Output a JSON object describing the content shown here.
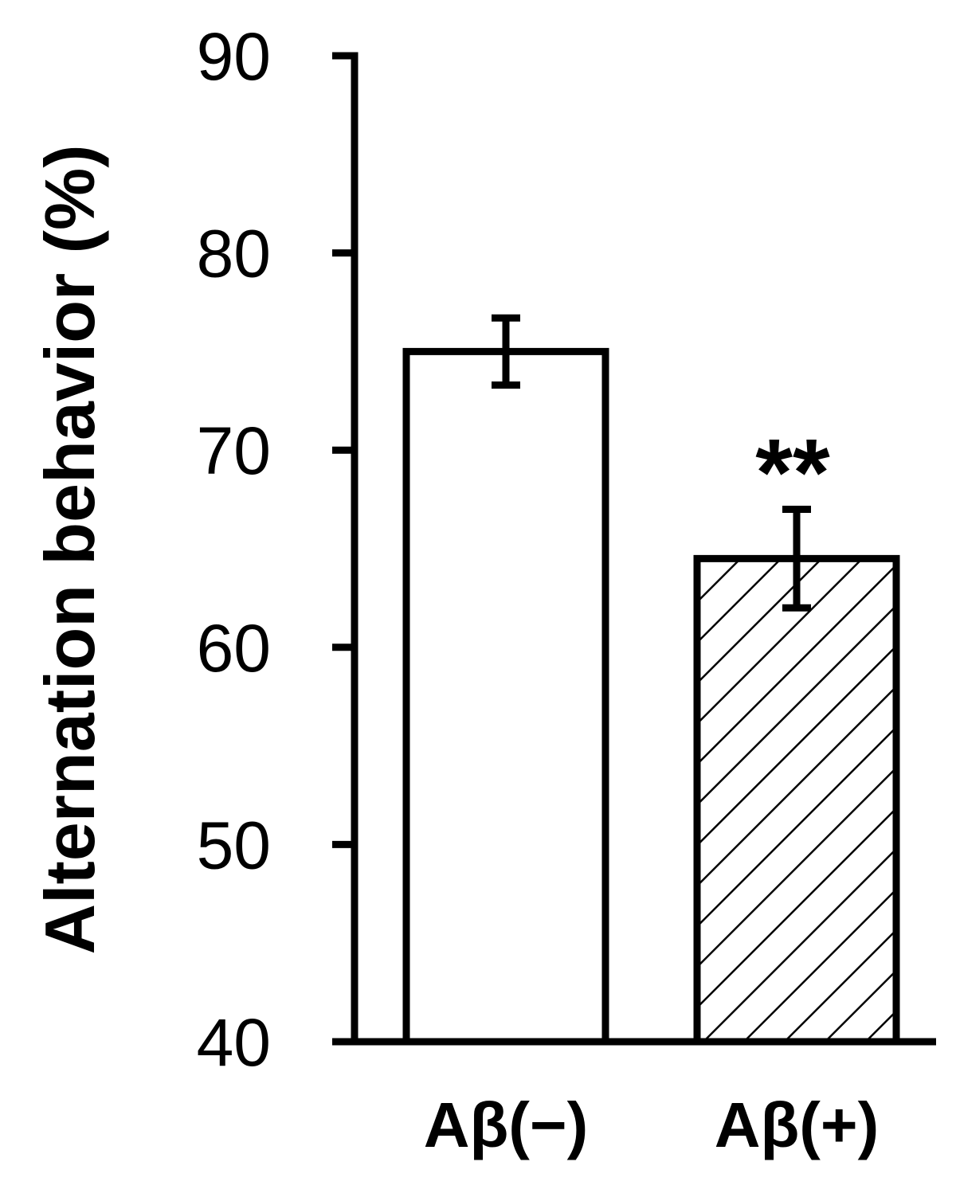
{
  "chart_data": {
    "type": "bar",
    "title": "",
    "xlabel": "",
    "ylabel": "Alternation behavior (%)",
    "ylim": [
      40,
      90
    ],
    "yticks": [
      40,
      50,
      60,
      70,
      80,
      90
    ],
    "categories": [
      "Aβ(−)",
      "Aβ(+)"
    ],
    "values": [
      75,
      64.5
    ],
    "errors": [
      1.7,
      2.5
    ],
    "fills": [
      "none",
      "hatched"
    ],
    "annotations": [
      {
        "category_index": 1,
        "text": "**"
      }
    ],
    "grid": false,
    "legend": "none"
  },
  "colors": {
    "stroke": "#000000",
    "background": "#ffffff"
  }
}
